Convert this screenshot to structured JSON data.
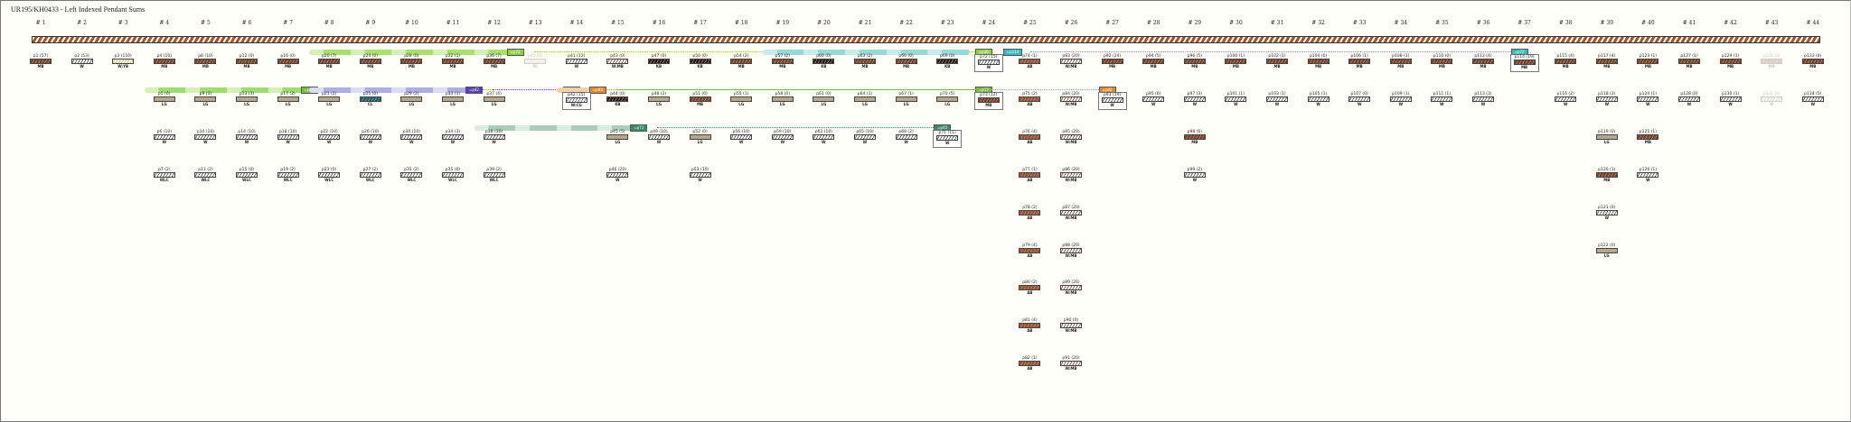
{
  "title": "UR195/KH0433 - Left Indexed Pendant Sums",
  "columns": [
    "# 1",
    "# 2",
    "# 3",
    "# 4",
    "# 5",
    "# 6",
    "# 7",
    "# 8",
    "# 9",
    "# 10",
    "# 11",
    "# 12",
    "# 13",
    "# 14",
    "# 15",
    "# 16",
    "# 17",
    "# 18",
    "# 19",
    "# 20",
    "# 21",
    "# 22",
    "# 23",
    "# 24",
    "# 25",
    "# 26",
    "# 27",
    "# 28",
    "# 29",
    "# 30",
    "# 31",
    "# 32",
    "# 33",
    "# 34",
    "# 35",
    "# 36",
    "# 37",
    "# 38",
    "# 39",
    "# 40",
    "# 41",
    "# 42",
    "# 43",
    "# 44"
  ],
  "colors": {
    "MB": "#7a3f24",
    "KB": "#2a1810",
    "AB": "#9a5030",
    "LG": "#b8a888",
    "CL": "#1f5d6a",
    "W": "#ffffff",
    "PL": "#e8c8c0",
    "W:MB": "#ffffff",
    "W:YB": "#ffffff",
    "W:CG": "#ffffff",
    "WLC": "#ffffff"
  },
  "pendants": [
    {
      "col": 1,
      "row": 1,
      "label": "p1 (57)",
      "color": "MB"
    },
    {
      "col": 2,
      "row": 1,
      "label": "p2 (53)",
      "color": "W"
    },
    {
      "col": 3,
      "row": 1,
      "label": "p3 (110)",
      "color": "W:YB"
    },
    {
      "col": 4,
      "row": 1,
      "label": "p4 (10)",
      "color": "MB"
    },
    {
      "col": 4,
      "row": 2,
      "label": "p5 (6)",
      "color": "LG"
    },
    {
      "col": 4,
      "row": 3,
      "label": "p6 (10)",
      "color": "W"
    },
    {
      "col": 4,
      "row": 4,
      "label": "p7 (2)",
      "color": "WLC"
    },
    {
      "col": 5,
      "row": 1,
      "label": "p8 (10)",
      "color": "MB"
    },
    {
      "col": 5,
      "row": 2,
      "label": "p9 (3)",
      "color": "LG"
    },
    {
      "col": 5,
      "row": 3,
      "label": "p10 (10)",
      "color": "W"
    },
    {
      "col": 5,
      "row": 4,
      "label": "p11 (2)",
      "color": "WLC"
    },
    {
      "col": 6,
      "row": 1,
      "label": "p12 (0)",
      "color": "MB"
    },
    {
      "col": 6,
      "row": 2,
      "label": "p13 (3)",
      "color": "LG"
    },
    {
      "col": 6,
      "row": 3,
      "label": "p14 (10)",
      "color": "W"
    },
    {
      "col": 6,
      "row": 4,
      "label": "p15 (0)",
      "color": "WLC"
    },
    {
      "col": 7,
      "row": 1,
      "label": "p16 (0)",
      "color": "MB"
    },
    {
      "col": 7,
      "row": 2,
      "label": "p17 (2)",
      "color": "LG"
    },
    {
      "col": 7,
      "row": 3,
      "label": "p18 (10)",
      "color": "W"
    },
    {
      "col": 7,
      "row": 4,
      "label": "p19 (2)",
      "color": "WLC"
    },
    {
      "col": 8,
      "row": 1,
      "label": "p20 (7)",
      "color": "MB"
    },
    {
      "col": 8,
      "row": 2,
      "label": "p21 (2)",
      "color": "LG"
    },
    {
      "col": 8,
      "row": 3,
      "label": "p22 (10)",
      "color": "W"
    },
    {
      "col": 8,
      "row": 4,
      "label": "p23 (0)",
      "color": "WLC"
    },
    {
      "col": 9,
      "row": 1,
      "label": "p24 (0)",
      "color": "MB"
    },
    {
      "col": 9,
      "row": 2,
      "label": "p25 (0)",
      "color": "CL"
    },
    {
      "col": 9,
      "row": 3,
      "label": "p26 (10)",
      "color": "W"
    },
    {
      "col": 9,
      "row": 4,
      "label": "p27 (2)",
      "color": "WLC"
    },
    {
      "col": 10,
      "row": 1,
      "label": "p28 (0)",
      "color": "MB"
    },
    {
      "col": 10,
      "row": 2,
      "label": "p29 (2)",
      "color": "LG"
    },
    {
      "col": 10,
      "row": 3,
      "label": "p30 (10)",
      "color": "W"
    },
    {
      "col": 10,
      "row": 4,
      "label": "p31 (2)",
      "color": "WLC"
    },
    {
      "col": 11,
      "row": 1,
      "label": "p32 (1)",
      "color": "MB"
    },
    {
      "col": 11,
      "row": 2,
      "label": "p33 (1)",
      "color": "LG"
    },
    {
      "col": 11,
      "row": 3,
      "label": "p34 (3)",
      "color": "W"
    },
    {
      "col": 11,
      "row": 4,
      "label": "p35 (0)",
      "color": "WLC"
    },
    {
      "col": 12,
      "row": 1,
      "label": "p36 (7)",
      "color": "MB"
    },
    {
      "col": 12,
      "row": 2,
      "label": "p37 (4)",
      "color": "LG"
    },
    {
      "col": 12,
      "row": 3,
      "label": "p38 (10)",
      "color": "W"
    },
    {
      "col": 12,
      "row": 4,
      "label": "p39 (2)",
      "color": "WLC"
    },
    {
      "col": 13,
      "row": 1,
      "label": "p40 (0)",
      "color": "PL",
      "faded": true
    },
    {
      "col": 14,
      "row": 1,
      "label": "p41 (12)",
      "color": "W"
    },
    {
      "col": 14,
      "row": 2,
      "label": "p42 (15)",
      "color": "W:CG",
      "boxed": true
    },
    {
      "col": 15,
      "row": 1,
      "label": "p43 (0)",
      "color": "W:MB"
    },
    {
      "col": 15,
      "row": 2,
      "label": "p44 (0)",
      "color": "KB"
    },
    {
      "col": 15,
      "row": 3,
      "label": "p45 (5)",
      "color": "LG"
    },
    {
      "col": 15,
      "row": 4,
      "label": "p46 (20)",
      "color": "W"
    },
    {
      "col": 16,
      "row": 1,
      "label": "p47 (0)",
      "color": "KB"
    },
    {
      "col": 16,
      "row": 2,
      "label": "p48 (2)",
      "color": "LG"
    },
    {
      "col": 16,
      "row": 3,
      "label": "p49 (10)",
      "color": "W"
    },
    {
      "col": 17,
      "row": 1,
      "label": "p50 (0)",
      "color": "KB"
    },
    {
      "col": 17,
      "row": 2,
      "label": "p51 (0)",
      "color": "MB"
    },
    {
      "col": 17,
      "row": 3,
      "label": "p52 (0)",
      "color": "LG"
    },
    {
      "col": 17,
      "row": 4,
      "label": "p53 (10)",
      "color": "W"
    },
    {
      "col": 18,
      "row": 1,
      "label": "p54 (2)",
      "color": "MB"
    },
    {
      "col": 18,
      "row": 2,
      "label": "p55 (1)",
      "color": "LG"
    },
    {
      "col": 18,
      "row": 3,
      "label": "p56 (10)",
      "color": "W"
    },
    {
      "col": 19,
      "row": 1,
      "label": "p57 (2)",
      "color": "MB"
    },
    {
      "col": 19,
      "row": 2,
      "label": "p58 (0)",
      "color": "LG"
    },
    {
      "col": 19,
      "row": 3,
      "label": "p59 (10)",
      "color": "W"
    },
    {
      "col": 20,
      "row": 1,
      "label": "p60 (0)",
      "color": "KB"
    },
    {
      "col": 20,
      "row": 2,
      "label": "p61 (0)",
      "color": "LG"
    },
    {
      "col": 20,
      "row": 3,
      "label": "p62 (10)",
      "color": "W"
    },
    {
      "col": 21,
      "row": 1,
      "label": "p63 (2)",
      "color": "MB"
    },
    {
      "col": 21,
      "row": 2,
      "label": "p64 (1)",
      "color": "LG"
    },
    {
      "col": 21,
      "row": 3,
      "label": "p65 (10)",
      "color": "W"
    },
    {
      "col": 22,
      "row": 1,
      "label": "p66 (0)",
      "color": "MB"
    },
    {
      "col": 22,
      "row": 2,
      "label": "p67 (1)",
      "color": "LG"
    },
    {
      "col": 22,
      "row": 3,
      "label": "p68 (2)",
      "color": "W"
    },
    {
      "col": 23,
      "row": 1,
      "label": "p69 (0)",
      "color": "KB"
    },
    {
      "col": 23,
      "row": 2,
      "label": "p70 (5)",
      "color": "LG"
    },
    {
      "col": 23,
      "row": 3,
      "label": "p71 (11)",
      "color": "W",
      "boxed": true
    },
    {
      "col": 24,
      "row": 1,
      "label": "p72 (15)",
      "color": "W",
      "boxed": true
    },
    {
      "col": 24,
      "row": 2,
      "label": "p73 (12)",
      "color": "MB",
      "boxed": true
    },
    {
      "col": 25,
      "row": 1,
      "label": "p74 (1)",
      "color": "AB"
    },
    {
      "col": 25,
      "row": 2,
      "label": "p75 (2)",
      "color": "AB"
    },
    {
      "col": 25,
      "row": 3,
      "label": "p76 (4)",
      "color": "AB"
    },
    {
      "col": 25,
      "row": 4,
      "label": "p77 (1)",
      "color": "AB"
    },
    {
      "col": 25,
      "row": 5,
      "label": "p78 (2)",
      "color": "AB"
    },
    {
      "col": 25,
      "row": 6,
      "label": "p79 (4)",
      "color": "AB"
    },
    {
      "col": 25,
      "row": 7,
      "label": "p80 (2)",
      "color": "AB"
    },
    {
      "col": 25,
      "row": 8,
      "label": "p81 (4)",
      "color": "AB"
    },
    {
      "col": 25,
      "row": 9,
      "label": "p82 (1)",
      "color": "AB"
    },
    {
      "col": 26,
      "row": 1,
      "label": "p83 (20)",
      "color": "W:MB"
    },
    {
      "col": 26,
      "row": 2,
      "label": "p84 (20)",
      "color": "W:MB"
    },
    {
      "col": 26,
      "row": 3,
      "label": "p85 (20)",
      "color": "W:MB"
    },
    {
      "col": 26,
      "row": 4,
      "label": "p86 (20)",
      "color": "W:MB"
    },
    {
      "col": 26,
      "row": 5,
      "label": "p87 (20)",
      "color": "W:MB"
    },
    {
      "col": 26,
      "row": 6,
      "label": "p88 (20)",
      "color": "W:MB"
    },
    {
      "col": 26,
      "row": 7,
      "label": "p89 (20)",
      "color": "W:MB"
    },
    {
      "col": 26,
      "row": 8,
      "label": "p90 (0)",
      "color": "W:MB"
    },
    {
      "col": 26,
      "row": 9,
      "label": "p91 (20)",
      "color": "W:MB"
    },
    {
      "col": 27,
      "row": 1,
      "label": "p92 (24)",
      "color": "MB"
    },
    {
      "col": 27,
      "row": 2,
      "label": "p93 (19)",
      "color": "W",
      "boxed": true
    },
    {
      "col": 28,
      "row": 1,
      "label": "p94 (5)",
      "color": "MB"
    },
    {
      "col": 28,
      "row": 2,
      "label": "p95 (6)",
      "color": "W"
    },
    {
      "col": 29,
      "row": 1,
      "label": "p96 (5)",
      "color": "MB"
    },
    {
      "col": 29,
      "row": 2,
      "label": "p97 (3)",
      "color": "W"
    },
    {
      "col": 29,
      "row": 3,
      "label": "p98 (6)",
      "color": "MB"
    },
    {
      "col": 29,
      "row": 4,
      "label": "p99 (2)",
      "color": "W"
    },
    {
      "col": 30,
      "row": 1,
      "label": "p100 (1)",
      "color": "MB"
    },
    {
      "col": 30,
      "row": 2,
      "label": "p101 (1)",
      "color": "W"
    },
    {
      "col": 31,
      "row": 1,
      "label": "p102 (1)",
      "color": "MB"
    },
    {
      "col": 31,
      "row": 2,
      "label": "p103 (1)",
      "color": "W"
    },
    {
      "col": 32,
      "row": 1,
      "label": "p104 (0)",
      "color": "MB"
    },
    {
      "col": 32,
      "row": 2,
      "label": "p105 (1)",
      "color": "W"
    },
    {
      "col": 33,
      "row": 1,
      "label": "p106 (1)",
      "color": "MB"
    },
    {
      "col": 33,
      "row": 2,
      "label": "p107 (0)",
      "color": "W"
    },
    {
      "col": 34,
      "row": 1,
      "label": "p108 (1)",
      "color": "MB"
    },
    {
      "col": 34,
      "row": 2,
      "label": "p109 (1)",
      "color": "W"
    },
    {
      "col": 35,
      "row": 1,
      "label": "p110 (0)",
      "color": "MB"
    },
    {
      "col": 35,
      "row": 2,
      "label": "p111 (1)",
      "color": "W"
    },
    {
      "col": 36,
      "row": 1,
      "label": "p112 (4)",
      "color": "MB"
    },
    {
      "col": 36,
      "row": 2,
      "label": "p113 (3)",
      "color": "W"
    },
    {
      "col": 37,
      "row": 1,
      "label": "p114 (19)",
      "color": "MB",
      "boxed": true
    },
    {
      "col": 38,
      "row": 1,
      "label": "p115 (4)",
      "color": "MB"
    },
    {
      "col": 38,
      "row": 2,
      "label": "p116 (2)",
      "color": "W"
    },
    {
      "col": 39,
      "row": 1,
      "label": "p117 (4)",
      "color": "MB"
    },
    {
      "col": 39,
      "row": 2,
      "label": "p118 (3)",
      "color": "W"
    },
    {
      "col": 39,
      "row": 3,
      "label": "p119 (0)",
      "color": "LG"
    },
    {
      "col": 39,
      "row": 4,
      "label": "p120 (1)",
      "color": "MB"
    },
    {
      "col": 39,
      "row": 5,
      "label": "p121 (0)",
      "color": "W"
    },
    {
      "col": 39,
      "row": 6,
      "label": "p122 (0)",
      "color": "LG"
    },
    {
      "col": 40,
      "row": 1,
      "label": "p123 (1)",
      "color": "MB"
    },
    {
      "col": 40,
      "row": 2,
      "label": "p124 (1)",
      "color": "W"
    },
    {
      "col": 40,
      "row": 3,
      "label": "p125 (1)",
      "color": "MB"
    },
    {
      "col": 40,
      "row": 4,
      "label": "p126 (1)",
      "color": "W"
    },
    {
      "col": 41,
      "row": 1,
      "label": "p127 (1)",
      "color": "MB"
    },
    {
      "col": 41,
      "row": 2,
      "label": "p128 (0)",
      "color": "W"
    },
    {
      "col": 42,
      "row": 1,
      "label": "p129 (1)",
      "color": "MB"
    },
    {
      "col": 42,
      "row": 2,
      "label": "p130 (1)",
      "color": "W"
    },
    {
      "col": 43,
      "row": 1,
      "label": "p131 (0)",
      "color": "MB",
      "faded": true
    },
    {
      "col": 43,
      "row": 2,
      "label": "p132 (0)",
      "color": "W",
      "faded": true
    },
    {
      "col": 44,
      "row": 1,
      "label": "p133 (4)",
      "color": "MB"
    },
    {
      "col": 44,
      "row": 2,
      "label": "p134 (5)",
      "color": "W"
    }
  ],
  "sums": [
    {
      "row": 1,
      "from_col": 8,
      "to_col": 12,
      "light": "#d4f0b8",
      "dark": "#a8e070",
      "tag": "=p72",
      "tag_color": "#8fcf4f",
      "target_col": 24,
      "target_tag": "=p36"
    },
    {
      "row": 1,
      "from_col": 19,
      "to_col": 23,
      "light": "#c8ecea",
      "dark": "#9ad8d6",
      "tag": "=p114",
      "tag_color": "#3ab8c0",
      "target_col": 37,
      "target_tag": "=p72",
      "tag_on_source_col": 24
    },
    {
      "row": 2,
      "from_col": 4,
      "to_col": 7,
      "light": "#d4f0b8",
      "dark": "#a0dc70",
      "tag": "=p73",
      "tag_color": "#7cb84a",
      "target_col": 24,
      "target_tag": "=p17"
    },
    {
      "row": 2,
      "from_col": 8,
      "to_col": 11,
      "light": "#dcdcf4",
      "dark": "#aeaee6",
      "tag": "=p42",
      "tag_color": "#5a3fb0",
      "target_col": 14,
      "target_tag": "=p37"
    },
    {
      "row": 2,
      "from_col": 14,
      "to_col": 14,
      "light": "#f0d0a8",
      "dark": "#f0d0a8",
      "tag": "=p93",
      "tag_color": "#e08a30",
      "target_col": 27,
      "target_tag": "=p42"
    },
    {
      "row": 3,
      "from_col": 12,
      "to_col": 15,
      "light": "#d8ece0",
      "dark": "#a8d0b8",
      "tag": "=p71",
      "tag_color": "#3a8a6a",
      "target_col": 23,
      "target_tag": "=p45"
    }
  ]
}
